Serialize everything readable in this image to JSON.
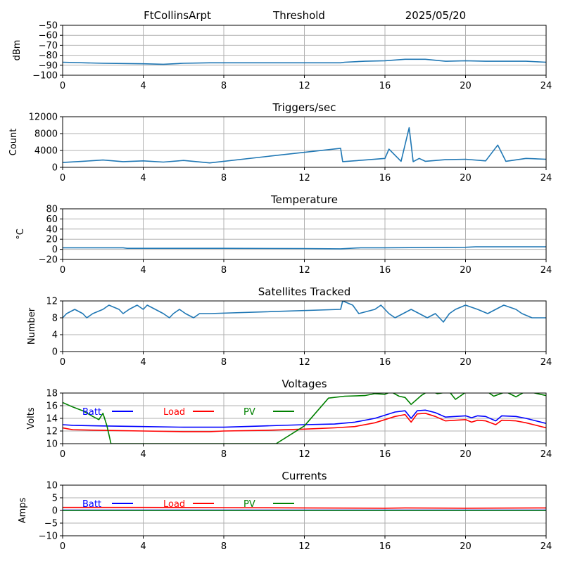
{
  "header": {
    "station": "FtCollinsArpt",
    "mode": "Threshold",
    "date": "2025/05/20"
  },
  "colors": {
    "default_line": "#1f77b4",
    "batt": "#0000ff",
    "load": "#ff0000",
    "pv": "#008000",
    "grid": "#b0b0b0"
  },
  "chart_data": [
    {
      "type": "line",
      "title": "",
      "xlabel": "",
      "ylabel": "dBm",
      "xlim": [
        0,
        24
      ],
      "xticks": [
        "0",
        "4",
        "8",
        "12",
        "16",
        "20",
        "24"
      ],
      "ylim": [
        -100,
        -50
      ],
      "yticks": [
        "−100",
        "−90",
        "−80",
        "−70",
        "−60",
        "−50"
      ],
      "grid": true,
      "series": [
        {
          "name": "",
          "color": "#1f77b4",
          "x": [
            0,
            2,
            4,
            5,
            6,
            7.3,
            10,
            13.8,
            14,
            15,
            16,
            17,
            18,
            19,
            20,
            21,
            22,
            23,
            24
          ],
          "y": [
            -87,
            -88,
            -88.5,
            -89,
            -88,
            -87.5,
            -87.5,
            -87.5,
            -87,
            -86,
            -85.5,
            -84,
            -84,
            -86,
            -85.5,
            -86,
            -86,
            -86,
            -87
          ]
        }
      ]
    },
    {
      "type": "line",
      "title": "Triggers/sec",
      "xlabel": "",
      "ylabel": "Count",
      "xlim": [
        0,
        24
      ],
      "xticks": [
        "0",
        "4",
        "8",
        "12",
        "16",
        "20",
        "24"
      ],
      "ylim": [
        0,
        12500
      ],
      "yticks": [
        "0",
        "4000",
        "8000",
        "12000"
      ],
      "grid": true,
      "series": [
        {
          "name": "",
          "color": "#1f77b4",
          "x": [
            0,
            1,
            2,
            3,
            4,
            5,
            6,
            7.3,
            10,
            13.8,
            13.9,
            15,
            16,
            16.2,
            16.8,
            17.2,
            17.4,
            17.7,
            18,
            19,
            20,
            21,
            21.6,
            22,
            23,
            24
          ],
          "y": [
            1200,
            1500,
            1800,
            1400,
            1600,
            1300,
            1700,
            1100,
            2600,
            4700,
            1400,
            1800,
            2200,
            4500,
            1500,
            9800,
            1400,
            2200,
            1500,
            1900,
            2000,
            1600,
            5500,
            1500,
            2200,
            2000
          ]
        }
      ]
    },
    {
      "type": "line",
      "title": "Temperature",
      "xlabel": "",
      "ylabel": "°C",
      "xlim": [
        0,
        24
      ],
      "xticks": [
        "0",
        "4",
        "8",
        "12",
        "16",
        "20",
        "24"
      ],
      "ylim": [
        -20,
        80
      ],
      "yticks": [
        "−20",
        "0",
        "20",
        "40",
        "60",
        "80"
      ],
      "grid": true,
      "series": [
        {
          "name": "",
          "color": "#1f77b4",
          "x": [
            0,
            3,
            3.2,
            8,
            12,
            13.8,
            14.8,
            16,
            20,
            20.5,
            24
          ],
          "y": [
            3,
            3,
            2,
            2,
            1.5,
            1,
            3,
            3,
            4,
            5,
            5
          ]
        }
      ]
    },
    {
      "type": "line",
      "title": "Satellites Tracked",
      "xlabel": "",
      "ylabel": "Number",
      "xlim": [
        0,
        24
      ],
      "xticks": [
        "0",
        "4",
        "8",
        "12",
        "16",
        "20",
        "24"
      ],
      "ylim": [
        0,
        12
      ],
      "yticks": [
        "0",
        "4",
        "8",
        "12"
      ],
      "grid": true,
      "series": [
        {
          "name": "",
          "color": "#1f77b4",
          "x": [
            0,
            0.2,
            0.6,
            1,
            1.2,
            1.5,
            2,
            2.3,
            2.8,
            3,
            3.3,
            3.7,
            4,
            4.2,
            4.6,
            5,
            5.3,
            5.5,
            5.8,
            6.1,
            6.5,
            6.8,
            7.3,
            13.8,
            13.9,
            14.4,
            14.7,
            15.5,
            15.8,
            16.2,
            16.5,
            16.9,
            17.3,
            17.7,
            18.1,
            18.5,
            18.9,
            19.2,
            19.5,
            20,
            20.6,
            21.1,
            21.5,
            21.9,
            22.5,
            22.8,
            23.3,
            24
          ],
          "y": [
            8,
            9,
            10,
            9,
            8,
            9,
            10,
            11,
            10,
            9,
            10,
            11,
            10,
            11,
            10,
            9,
            8,
            9,
            10,
            9,
            8,
            9,
            9,
            10,
            12,
            11,
            9,
            10,
            11,
            9,
            8,
            9,
            10,
            9,
            8,
            9,
            7,
            9,
            10,
            11,
            10,
            9,
            10,
            11,
            10,
            9,
            8,
            8
          ]
        }
      ]
    },
    {
      "type": "line",
      "title": "Voltages",
      "xlabel": "",
      "ylabel": "Volts",
      "xlim": [
        0,
        24
      ],
      "xticks": [
        "0",
        "4",
        "8",
        "12",
        "16",
        "20",
        "24"
      ],
      "ylim": [
        10,
        18
      ],
      "yticks": [
        "10",
        "12",
        "14",
        "16",
        "18"
      ],
      "grid": true,
      "legend": "top-left",
      "series": [
        {
          "name": "Batt",
          "color": "#0000ff",
          "x": [
            0,
            0.5,
            2,
            4,
            6,
            7.3,
            8,
            10,
            12,
            13.5,
            14.5,
            15.5,
            16,
            16.5,
            17,
            17.3,
            17.6,
            18,
            18.5,
            19,
            19.5,
            20,
            20.3,
            20.6,
            21,
            21.5,
            21.8,
            22.5,
            23,
            23.5,
            24
          ],
          "y": [
            13,
            12.9,
            12.8,
            12.7,
            12.6,
            12.6,
            12.6,
            12.8,
            13,
            13.1,
            13.4,
            14,
            14.5,
            15,
            15.2,
            14,
            15.2,
            15.3,
            14.9,
            14.2,
            14.3,
            14.4,
            14.1,
            14.4,
            14.3,
            13.6,
            14.4,
            14.3,
            14,
            13.6,
            13.2
          ]
        },
        {
          "name": "Load",
          "color": "#ff0000",
          "x": [
            0,
            0.5,
            2,
            4,
            6,
            7.3,
            8,
            10,
            12,
            13.5,
            14.5,
            15.5,
            16,
            16.5,
            17,
            17.3,
            17.6,
            18,
            18.5,
            19,
            19.5,
            20,
            20.3,
            20.6,
            21,
            21.5,
            21.8,
            22.5,
            23,
            23.5,
            24
          ],
          "y": [
            12.5,
            12.2,
            12.1,
            12,
            11.9,
            11.9,
            12,
            12.1,
            12.3,
            12.5,
            12.7,
            13.3,
            13.8,
            14.3,
            14.6,
            13.4,
            14.7,
            14.8,
            14.3,
            13.6,
            13.7,
            13.8,
            13.4,
            13.7,
            13.6,
            13,
            13.7,
            13.6,
            13.3,
            12.9,
            12.5
          ]
        },
        {
          "name": "PV",
          "color": "#008000",
          "x": [
            0,
            0.5,
            1,
            1.5,
            1.8,
            2,
            2.2,
            2.4,
            10.6,
            12,
            13.2,
            14,
            15,
            15.5,
            16,
            16.3,
            16.7,
            17,
            17.3,
            17.8,
            18.2,
            18.6,
            19.2,
            19.5,
            20,
            21,
            21.4,
            22,
            22.5,
            23,
            24
          ],
          "y": [
            16.5,
            15.8,
            15.2,
            14.3,
            13.8,
            14.8,
            12.8,
            10,
            10,
            12.8,
            17.2,
            17.5,
            17.6,
            17.9,
            17.8,
            18.2,
            17.5,
            17.3,
            16.2,
            17.6,
            18.4,
            17.9,
            18.2,
            17,
            18.1,
            18.4,
            17.5,
            18.2,
            17.4,
            18.3,
            17.6
          ]
        }
      ]
    },
    {
      "type": "line",
      "title": "Currents",
      "xlabel": "",
      "ylabel": "Amps",
      "xlim": [
        0,
        24
      ],
      "xticks": [
        "0",
        "4",
        "8",
        "12",
        "16",
        "20",
        "24"
      ],
      "ylim": [
        -10,
        10
      ],
      "yticks": [
        "−10",
        "−5",
        "0",
        "5",
        "10"
      ],
      "grid": true,
      "legend": "top-left",
      "series": [
        {
          "name": "Batt",
          "color": "#0000ff",
          "x": [
            0,
            24
          ],
          "y": [
            0.1,
            0.1
          ]
        },
        {
          "name": "Load",
          "color": "#ff0000",
          "x": [
            0,
            4,
            8,
            12,
            16,
            17,
            20,
            24
          ],
          "y": [
            1.2,
            1.2,
            1.1,
            1,
            0.9,
            1,
            0.9,
            1
          ]
        },
        {
          "name": "PV",
          "color": "#008000",
          "x": [
            0,
            24
          ],
          "y": [
            0,
            0
          ]
        }
      ]
    }
  ]
}
